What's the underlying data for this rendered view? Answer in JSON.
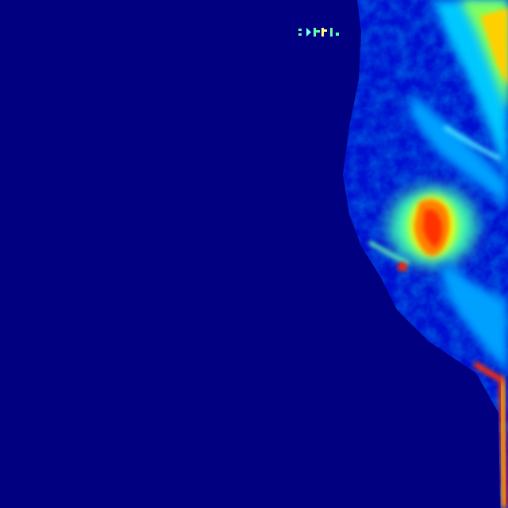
{
  "viewer": {
    "background_color": "#000080",
    "colormap": "jet",
    "colormap_stops": [
      "#000080",
      "#0000ff",
      "#00b0ff",
      "#00ffd0",
      "#80ff60",
      "#ffff00",
      "#ff8000",
      "#ff0000",
      "#800000"
    ]
  },
  "scan": {
    "subject": "breast-tissue-heatmap",
    "side_orientation": "right-edge"
  },
  "marker": {
    "icon": "orientation-marker-icon"
  }
}
